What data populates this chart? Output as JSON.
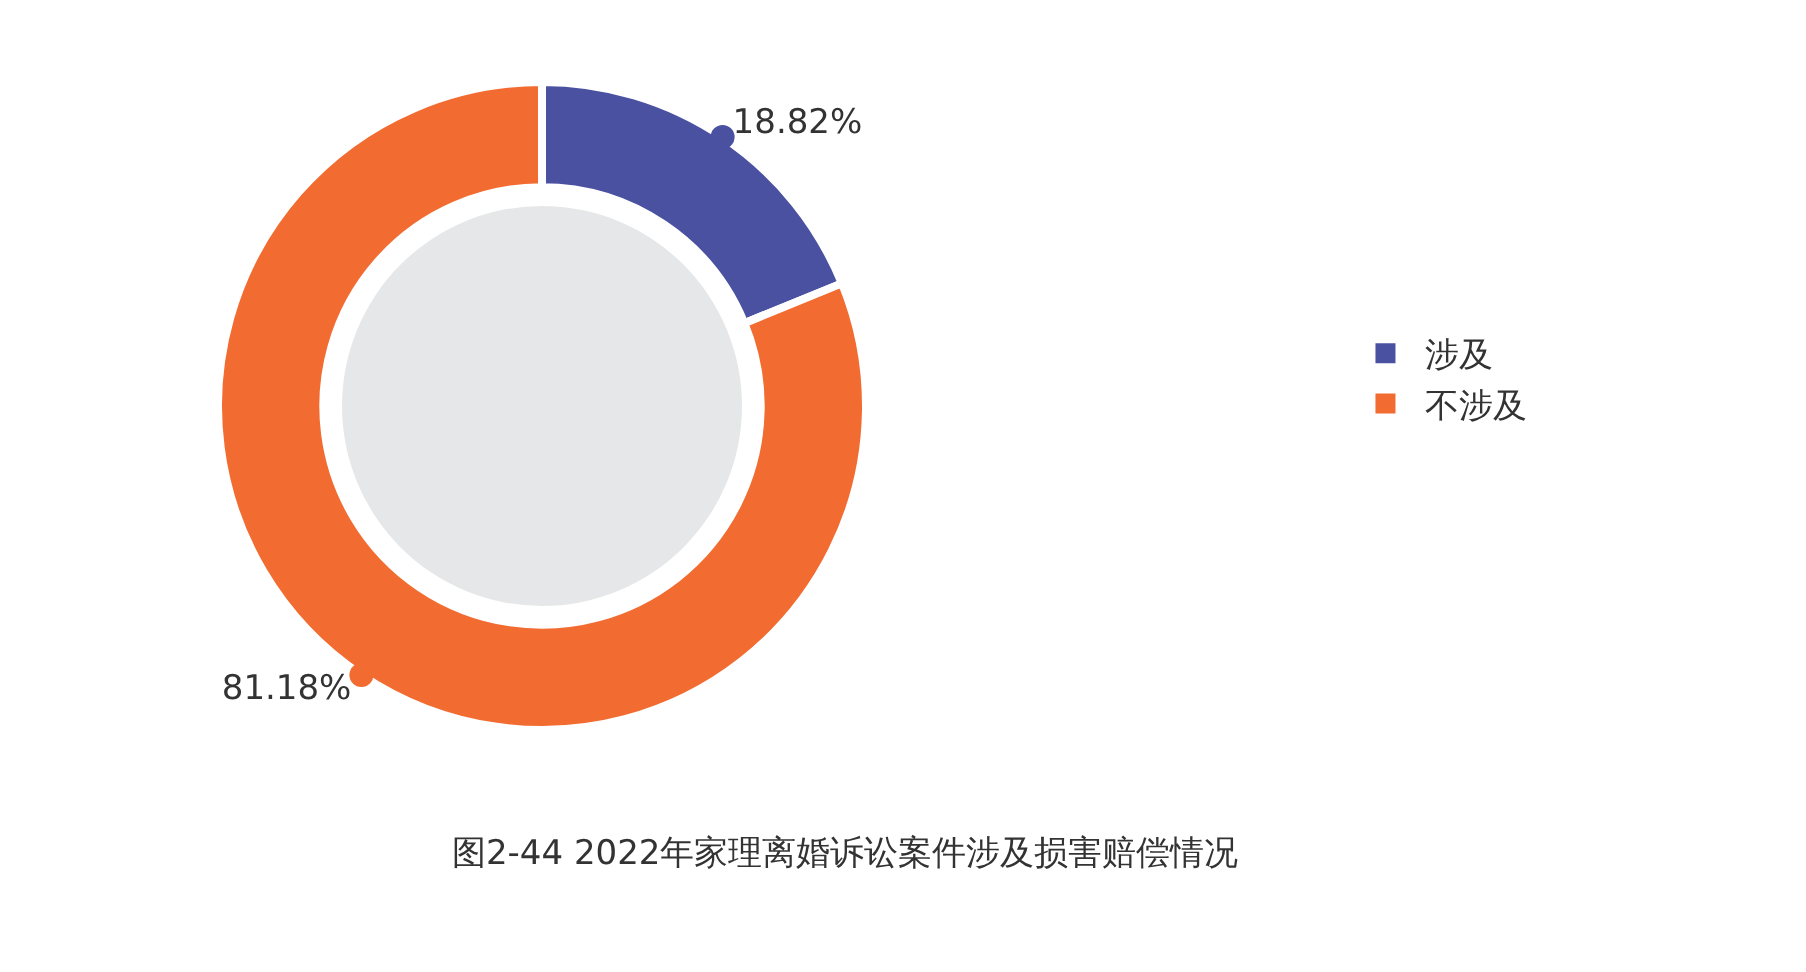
{
  "chart_data": {
    "type": "donut",
    "title": "图2-44 2022年家理离婚诉讼案件涉及损害赔偿情况",
    "categories": [
      "涉及",
      "不涉及"
    ],
    "values": [
      18.82,
      81.18
    ],
    "colors": [
      "#4b51a1",
      "#f26b30"
    ],
    "value_labels": [
      "18.82%",
      "81.18%"
    ],
    "legend": "right"
  }
}
